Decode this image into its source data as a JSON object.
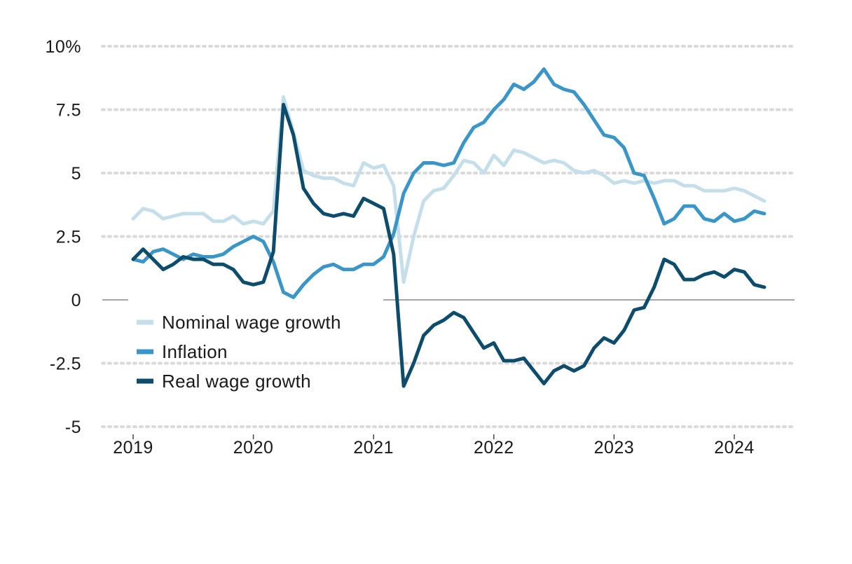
{
  "chart_data": {
    "type": "line",
    "x_start": "2019-01",
    "y_ticks": [
      {
        "value": 10,
        "label": "10%"
      },
      {
        "value": 7.5,
        "label": "7.5"
      },
      {
        "value": 5,
        "label": "5"
      },
      {
        "value": 2.5,
        "label": "2.5"
      },
      {
        "value": 0,
        "label": "0"
      },
      {
        "value": -2.5,
        "label": "-2.5"
      },
      {
        "value": -5,
        "label": "-5"
      }
    ],
    "x_ticks": [
      "2019",
      "2020",
      "2021",
      "2022",
      "2023",
      "2024"
    ],
    "ylim": [
      -5,
      10
    ],
    "grid": "dotted horizontal",
    "legend_position": "lower-left",
    "colors": {
      "nominal": "#c5dfea",
      "inflation": "#3b96c8",
      "real": "#0e4c6c",
      "grid": "#dadada",
      "zero_line": "#8a8a8a"
    },
    "series": [
      {
        "name": "Nominal wage growth",
        "key": "nominal",
        "values": [
          3.2,
          3.6,
          3.5,
          3.2,
          3.3,
          3.4,
          3.4,
          3.4,
          3.1,
          3.1,
          3.3,
          3.0,
          3.1,
          3.0,
          3.5,
          8.0,
          6.6,
          5.1,
          4.9,
          4.8,
          4.8,
          4.6,
          4.5,
          5.4,
          5.2,
          5.3,
          4.5,
          0.7,
          2.5,
          3.9,
          4.3,
          4.4,
          4.9,
          5.5,
          5.4,
          5.0,
          5.7,
          5.3,
          5.9,
          5.8,
          5.6,
          5.4,
          5.5,
          5.4,
          5.1,
          5.0,
          5.1,
          4.9,
          4.6,
          4.7,
          4.6,
          4.7,
          4.6,
          4.7,
          4.7,
          4.5,
          4.5,
          4.3,
          4.3,
          4.3,
          4.4,
          4.3,
          4.1,
          3.9
        ]
      },
      {
        "name": "Inflation",
        "key": "inflation",
        "values": [
          1.6,
          1.5,
          1.9,
          2.0,
          1.8,
          1.6,
          1.8,
          1.7,
          1.7,
          1.8,
          2.1,
          2.3,
          2.5,
          2.3,
          1.5,
          0.3,
          0.1,
          0.6,
          1.0,
          1.3,
          1.4,
          1.2,
          1.2,
          1.4,
          1.4,
          1.7,
          2.6,
          4.2,
          5.0,
          5.4,
          5.4,
          5.3,
          5.4,
          6.2,
          6.8,
          7.0,
          7.5,
          7.9,
          8.5,
          8.3,
          8.6,
          9.1,
          8.5,
          8.3,
          8.2,
          7.7,
          7.1,
          6.5,
          6.4,
          6.0,
          5.0,
          4.9,
          4.0,
          3.0,
          3.2,
          3.7,
          3.7,
          3.2,
          3.1,
          3.4,
          3.1,
          3.2,
          3.5,
          3.4
        ]
      },
      {
        "name": "Real wage growth",
        "key": "real",
        "values": [
          1.6,
          2.0,
          1.6,
          1.2,
          1.4,
          1.7,
          1.6,
          1.6,
          1.4,
          1.4,
          1.2,
          0.7,
          0.6,
          0.7,
          1.9,
          7.7,
          6.5,
          4.4,
          3.8,
          3.4,
          3.3,
          3.4,
          3.3,
          4.0,
          3.8,
          3.6,
          1.8,
          -3.4,
          -2.5,
          -1.4,
          -1.0,
          -0.8,
          -0.5,
          -0.7,
          -1.3,
          -1.9,
          -1.7,
          -2.4,
          -2.4,
          -2.3,
          -2.8,
          -3.3,
          -2.8,
          -2.6,
          -2.8,
          -2.6,
          -1.9,
          -1.5,
          -1.7,
          -1.2,
          -0.4,
          -0.3,
          0.5,
          1.6,
          1.4,
          0.8,
          0.8,
          1.0,
          1.1,
          0.9,
          1.2,
          1.1,
          0.6,
          0.5
        ]
      }
    ]
  }
}
